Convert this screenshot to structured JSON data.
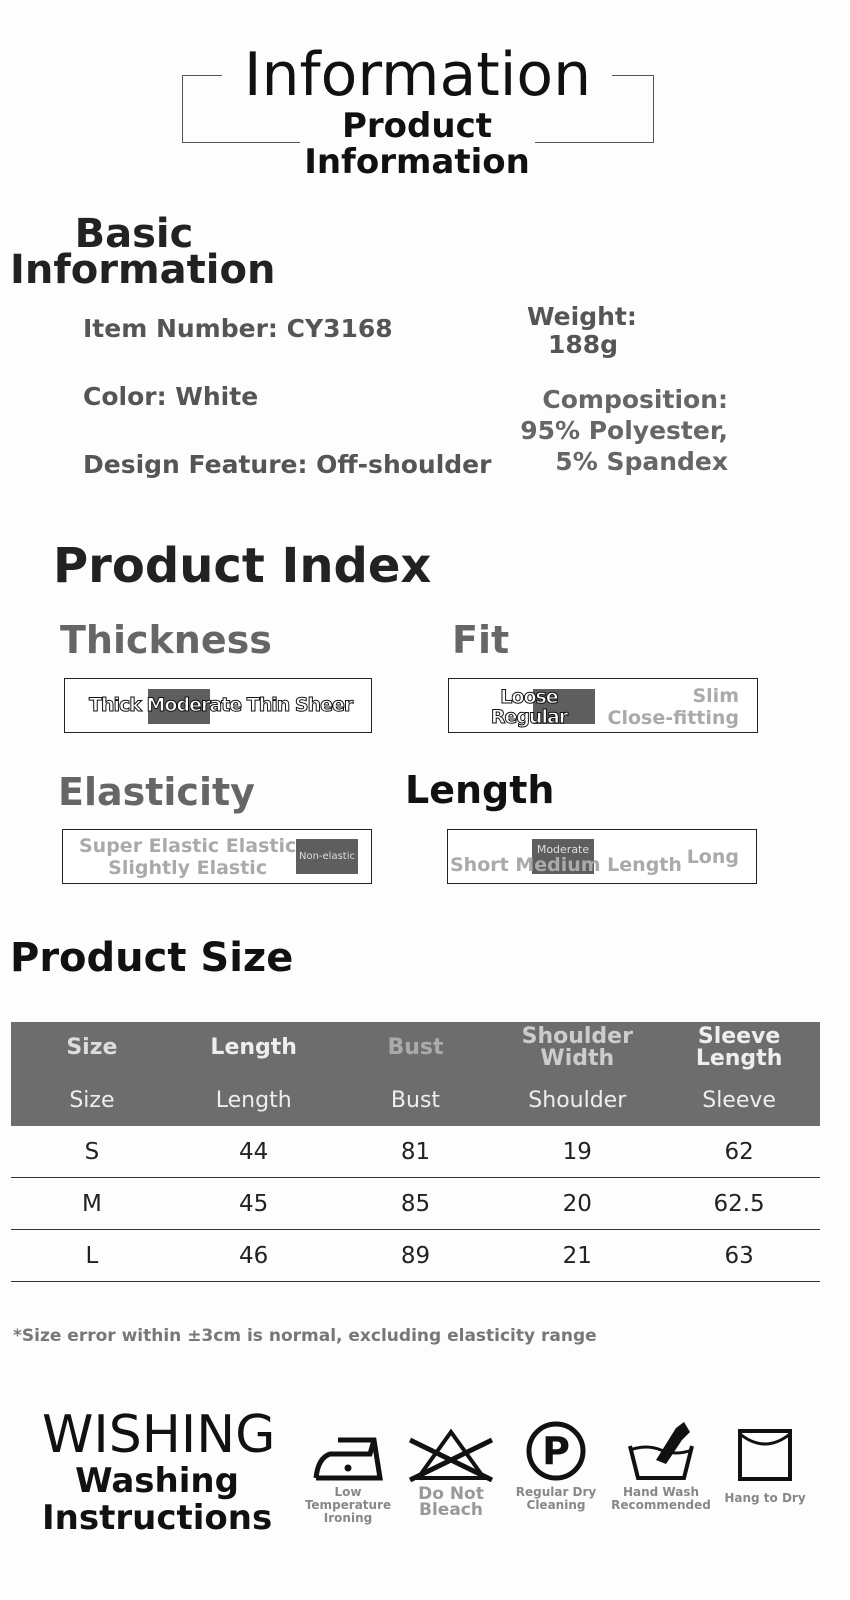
{
  "header": {
    "title": "Information",
    "subtitle": "Product Information"
  },
  "basic": {
    "title": "Basic Information",
    "item_number": "Item Number: CY3168",
    "color": "Color: White",
    "design": "Design Feature: Off-shoulder",
    "weight_label": "Weight:",
    "weight_value": "188g",
    "composition_label": "Composition:",
    "composition_1": "95% Polyester,",
    "composition_2": "5% Spandex"
  },
  "index": {
    "title": "Product Index",
    "thickness": {
      "label": "Thickness",
      "options": "Thick Moderate Thin Sheer",
      "selected": "Moderate"
    },
    "fit": {
      "label": "Fit",
      "opt1": "Loose",
      "opt2": "Regular",
      "opt3": "Slim",
      "opt4": "Close-fitting",
      "selected": "Regular"
    },
    "elasticity": {
      "label": "Elasticity",
      "opt1": "Super Elastic Elastic",
      "opt2": "Slightly Elastic",
      "selected": "Non-elastic"
    },
    "length": {
      "label": "Length",
      "options": "Short Medium Length",
      "opt_long": "Long",
      "selected": "Moderate"
    }
  },
  "size": {
    "title": "Product Size",
    "headers_top": [
      "Size",
      "Length",
      "Bust",
      "Shoulder Width",
      "Sleeve Length"
    ],
    "headers": [
      "Size",
      "Length",
      "Bust",
      "Shoulder",
      "Sleeve"
    ],
    "rows": [
      [
        "S",
        "44",
        "81",
        "19",
        "62"
      ],
      [
        "M",
        "45",
        "85",
        "20",
        "62.5"
      ],
      [
        "L",
        "46",
        "89",
        "21",
        "63"
      ]
    ],
    "note": "*Size error within ±3cm is normal, excluding elasticity range"
  },
  "washing": {
    "brand": "WISHING",
    "title": "Washing Instructions",
    "items": [
      {
        "icon": "iron-low-icon",
        "label": "Low Temperature Ironing"
      },
      {
        "icon": "no-bleach-icon",
        "label": "Do Not Bleach"
      },
      {
        "icon": "dry-clean-p-icon",
        "label": "Regular Dry Cleaning"
      },
      {
        "icon": "hand-wash-icon",
        "label": "Hand Wash Recommended"
      },
      {
        "icon": "hang-dry-icon",
        "label": "Hang to Dry"
      }
    ]
  },
  "colors": {
    "header_bg": "#6d6d6d",
    "selected": "#5e5e5e"
  }
}
